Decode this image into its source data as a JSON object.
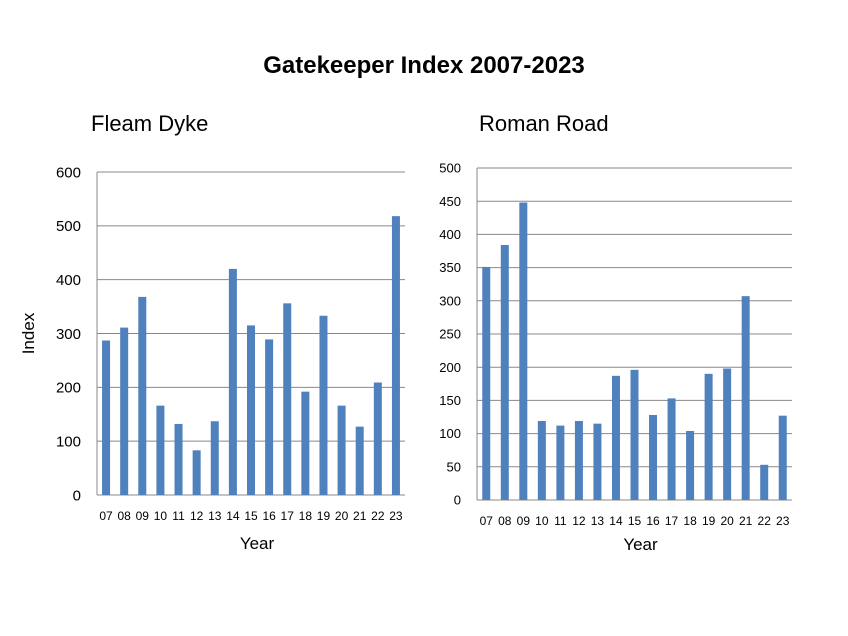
{
  "page": {
    "title": "Gatekeeper Index 2007-2023"
  },
  "chart_data": [
    {
      "type": "bar",
      "title": "Fleam Dyke",
      "xlabel": "Year",
      "ylabel": "Index",
      "ylim": [
        0,
        600
      ],
      "yticks": [
        0,
        100,
        200,
        300,
        400,
        500,
        600
      ],
      "grid": true,
      "bar_color": "#4f81bd",
      "categories": [
        "07",
        "08",
        "09",
        "10",
        "11",
        "12",
        "13",
        "14",
        "15",
        "16",
        "17",
        "18",
        "19",
        "20",
        "21",
        "22",
        "23"
      ],
      "values": [
        287,
        311,
        368,
        166,
        132,
        83,
        137,
        420,
        315,
        289,
        356,
        192,
        333,
        166,
        127,
        209,
        518
      ]
    },
    {
      "type": "bar",
      "title": "Roman Road",
      "xlabel": "Year",
      "ylabel": "",
      "ylim": [
        0,
        500
      ],
      "yticks": [
        0,
        50,
        100,
        150,
        200,
        250,
        300,
        350,
        400,
        450,
        500
      ],
      "grid": true,
      "bar_color": "#4f81bd",
      "categories": [
        "07",
        "08",
        "09",
        "10",
        "11",
        "12",
        "13",
        "14",
        "15",
        "16",
        "17",
        "18",
        "19",
        "20",
        "21",
        "22",
        "23"
      ],
      "values": [
        351,
        384,
        448,
        119,
        112,
        119,
        115,
        187,
        196,
        128,
        153,
        104,
        190,
        198,
        307,
        53,
        127
      ]
    }
  ]
}
